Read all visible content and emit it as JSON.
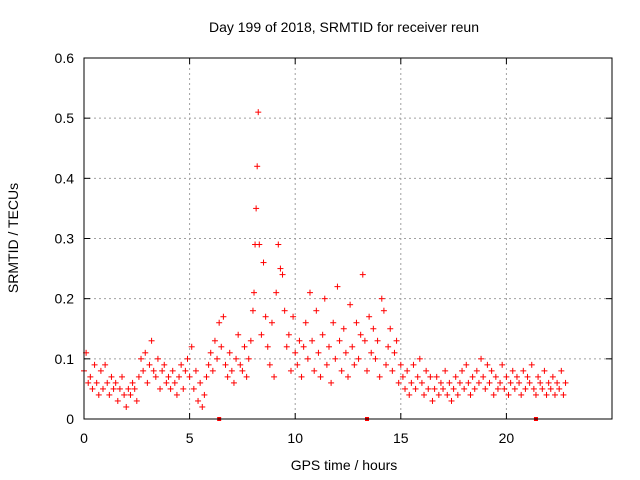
{
  "chart_data": {
    "type": "scatter",
    "title": "Day 199 of 2018, SRMTID for receiver reun",
    "xlabel": "GPS time / hours",
    "ylabel": "SRMTID / TECUs",
    "xlim": [
      0,
      25
    ],
    "ylim": [
      0,
      0.6
    ],
    "x_ticks": [
      0,
      5,
      10,
      15,
      20
    ],
    "x_tick_labels": [
      "0",
      "5",
      "10",
      "15",
      "20"
    ],
    "y_ticks": [
      0,
      0.1,
      0.2,
      0.3,
      0.4,
      0.5,
      0.6
    ],
    "y_tick_labels": [
      "0",
      "0.1",
      "0.2",
      "0.3",
      "0.4",
      "0.5",
      "0.6"
    ],
    "grid": true,
    "marker": "+",
    "color": "#ff0000",
    "series": [
      {
        "name": "SRMTID",
        "x": [
          0.0,
          0.1,
          0.2,
          0.3,
          0.4,
          0.5,
          0.6,
          0.7,
          0.8,
          0.9,
          1.0,
          1.1,
          1.2,
          1.3,
          1.4,
          1.5,
          1.6,
          1.7,
          1.8,
          1.9,
          2.0,
          2.1,
          2.2,
          2.3,
          2.4,
          2.5,
          2.6,
          2.7,
          2.8,
          2.9,
          3.0,
          3.1,
          3.2,
          3.3,
          3.4,
          3.5,
          3.6,
          3.7,
          3.8,
          3.9,
          4.0,
          4.1,
          4.2,
          4.3,
          4.4,
          4.5,
          4.6,
          4.7,
          4.8,
          4.9,
          5.0,
          5.1,
          5.2,
          5.3,
          5.4,
          5.5,
          5.6,
          5.7,
          5.8,
          5.9,
          6.0,
          6.1,
          6.2,
          6.3,
          6.4,
          6.5,
          6.6,
          6.7,
          6.8,
          6.9,
          7.0,
          7.1,
          7.2,
          7.3,
          7.4,
          7.5,
          7.6,
          7.7,
          7.8,
          7.9,
          8.0,
          8.05,
          8.1,
          8.15,
          8.2,
          8.25,
          8.3,
          8.4,
          8.5,
          8.6,
          8.7,
          8.8,
          8.9,
          9.0,
          9.1,
          9.2,
          9.3,
          9.4,
          9.5,
          9.6,
          9.7,
          9.8,
          9.9,
          10.0,
          10.1,
          10.2,
          10.3,
          10.4,
          10.5,
          10.6,
          10.7,
          10.8,
          10.9,
          11.0,
          11.1,
          11.2,
          11.3,
          11.4,
          11.5,
          11.6,
          11.7,
          11.8,
          11.9,
          12.0,
          12.1,
          12.2,
          12.3,
          12.4,
          12.5,
          12.6,
          12.7,
          12.8,
          12.9,
          13.0,
          13.1,
          13.2,
          13.3,
          13.4,
          13.5,
          13.6,
          13.7,
          13.8,
          13.9,
          14.0,
          14.1,
          14.2,
          14.3,
          14.4,
          14.5,
          14.6,
          14.7,
          14.8,
          14.9,
          15.0,
          15.1,
          15.2,
          15.3,
          15.4,
          15.5,
          15.6,
          15.7,
          15.8,
          15.9,
          16.0,
          16.1,
          16.2,
          16.3,
          16.4,
          16.5,
          16.6,
          16.7,
          16.8,
          16.9,
          17.0,
          17.1,
          17.2,
          17.3,
          17.4,
          17.5,
          17.6,
          17.7,
          17.8,
          17.9,
          18.0,
          18.1,
          18.2,
          18.3,
          18.4,
          18.5,
          18.6,
          18.7,
          18.8,
          18.9,
          19.0,
          19.1,
          19.2,
          19.3,
          19.4,
          19.5,
          19.6,
          19.7,
          19.8,
          19.9,
          20.0,
          20.1,
          20.2,
          20.3,
          20.4,
          20.5,
          20.6,
          20.7,
          20.8,
          20.9,
          21.0,
          21.1,
          21.2,
          21.3,
          21.4,
          21.5,
          21.6,
          21.7,
          21.8,
          21.9,
          22.0,
          22.1,
          22.2,
          22.3,
          22.4,
          22.5,
          22.6,
          22.7,
          22.8
        ],
        "y": [
          0.08,
          0.11,
          0.06,
          0.07,
          0.05,
          0.09,
          0.06,
          0.04,
          0.08,
          0.05,
          0.09,
          0.06,
          0.04,
          0.07,
          0.05,
          0.06,
          0.03,
          0.05,
          0.07,
          0.04,
          0.02,
          0.05,
          0.04,
          0.06,
          0.05,
          0.03,
          0.07,
          0.1,
          0.08,
          0.11,
          0.06,
          0.09,
          0.13,
          0.08,
          0.07,
          0.1,
          0.05,
          0.08,
          0.09,
          0.06,
          0.07,
          0.05,
          0.08,
          0.06,
          0.04,
          0.07,
          0.09,
          0.05,
          0.08,
          0.1,
          0.07,
          0.12,
          0.05,
          0.08,
          0.03,
          0.06,
          0.02,
          0.04,
          0.07,
          0.09,
          0.11,
          0.08,
          0.13,
          0.1,
          0.16,
          0.12,
          0.17,
          0.09,
          0.07,
          0.11,
          0.08,
          0.06,
          0.1,
          0.14,
          0.09,
          0.08,
          0.12,
          0.07,
          0.1,
          0.13,
          0.18,
          0.21,
          0.29,
          0.35,
          0.42,
          0.51,
          0.29,
          0.14,
          0.26,
          0.17,
          0.12,
          0.09,
          0.16,
          0.07,
          0.21,
          0.29,
          0.25,
          0.24,
          0.18,
          0.12,
          0.14,
          0.08,
          0.17,
          0.11,
          0.09,
          0.13,
          0.07,
          0.12,
          0.16,
          0.1,
          0.21,
          0.13,
          0.08,
          0.18,
          0.11,
          0.07,
          0.14,
          0.2,
          0.09,
          0.12,
          0.06,
          0.16,
          0.1,
          0.22,
          0.13,
          0.08,
          0.15,
          0.11,
          0.07,
          0.19,
          0.12,
          0.09,
          0.16,
          0.1,
          0.14,
          0.24,
          0.13,
          0.08,
          0.17,
          0.11,
          0.15,
          0.1,
          0.13,
          0.07,
          0.2,
          0.18,
          0.09,
          0.12,
          0.15,
          0.08,
          0.11,
          0.13,
          0.06,
          0.09,
          0.07,
          0.05,
          0.08,
          0.04,
          0.06,
          0.09,
          0.05,
          0.07,
          0.1,
          0.06,
          0.04,
          0.08,
          0.05,
          0.07,
          0.03,
          0.05,
          0.07,
          0.04,
          0.06,
          0.05,
          0.08,
          0.04,
          0.06,
          0.03,
          0.05,
          0.07,
          0.04,
          0.06,
          0.08,
          0.05,
          0.09,
          0.06,
          0.04,
          0.07,
          0.05,
          0.08,
          0.06,
          0.1,
          0.07,
          0.05,
          0.09,
          0.06,
          0.08,
          0.04,
          0.07,
          0.05,
          0.06,
          0.09,
          0.05,
          0.07,
          0.04,
          0.06,
          0.08,
          0.05,
          0.07,
          0.06,
          0.04,
          0.08,
          0.05,
          0.07,
          0.06,
          0.09,
          0.05,
          0.04,
          0.07,
          0.06,
          0.05,
          0.08,
          0.04,
          0.06,
          0.05,
          0.07,
          0.04,
          0.06,
          0.05,
          0.08,
          0.04,
          0.06
        ]
      }
    ],
    "baseline_markers_x": [
      6.4,
      13.4,
      21.4
    ]
  }
}
